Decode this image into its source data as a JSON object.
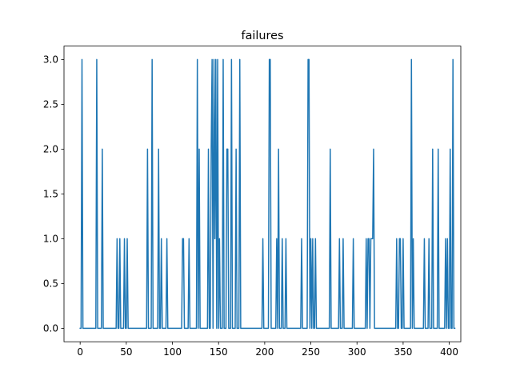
{
  "chart_data": {
    "type": "line",
    "title": "failures",
    "xlabel": "",
    "ylabel": "",
    "xlim": [
      -17.5,
      412.5
    ],
    "ylim": [
      -0.15,
      3.15
    ],
    "x_ticks": [
      0,
      50,
      100,
      150,
      200,
      250,
      300,
      350,
      400
    ],
    "x_tick_labels": [
      "0",
      "50",
      "100",
      "150",
      "200",
      "250",
      "300",
      "350",
      "400"
    ],
    "y_ticks": [
      0.0,
      0.5,
      1.0,
      1.5,
      2.0,
      2.5,
      3.0
    ],
    "y_tick_labels": [
      "0.0",
      "0.5",
      "1.0",
      "1.5",
      "2.0",
      "2.5",
      "3.0"
    ],
    "grid": false,
    "line_color": "#1f77b4",
    "series": [
      {
        "name": "failures",
        "x_start": 0,
        "values": [
          0,
          0,
          3,
          0,
          0,
          0,
          0,
          0,
          0,
          0,
          0,
          0,
          0,
          0,
          0,
          0,
          0,
          0,
          3,
          0,
          0,
          0,
          0,
          0,
          2,
          0,
          0,
          0,
          0,
          0,
          0,
          0,
          0,
          0,
          0,
          0,
          0,
          0,
          0,
          0,
          1,
          0,
          0,
          1,
          0,
          0,
          0,
          0,
          1,
          0,
          0,
          1,
          0,
          0,
          0,
          0,
          0,
          0,
          0,
          0,
          0,
          0,
          0,
          0,
          0,
          0,
          0,
          0,
          0,
          0,
          0,
          0,
          0,
          2,
          0,
          0,
          0,
          0,
          3,
          0,
          0,
          0,
          0,
          0,
          0,
          2,
          0,
          0,
          1,
          0,
          0,
          0,
          0,
          0,
          1,
          0,
          0,
          0,
          0,
          0,
          0,
          0,
          0,
          0,
          0,
          0,
          0,
          0,
          0,
          0,
          0,
          1,
          1,
          0,
          0,
          0,
          0,
          0,
          1,
          0,
          0,
          0,
          0,
          0,
          0,
          0,
          0,
          3,
          0,
          2,
          0,
          0,
          0,
          0,
          0,
          0,
          0,
          0,
          0,
          2,
          0,
          0,
          2,
          3,
          0,
          3,
          1,
          3,
          0,
          3,
          0,
          1,
          0,
          0,
          0,
          3,
          0,
          0,
          0,
          2,
          2,
          0,
          0,
          0,
          3,
          0,
          0,
          0,
          0,
          2,
          0,
          0,
          0,
          3,
          0,
          0,
          0,
          0,
          0,
          0,
          0,
          0,
          0,
          0,
          0,
          0,
          0,
          0,
          0,
          0,
          0,
          0,
          0,
          0,
          0,
          0,
          0,
          0,
          1,
          0,
          0,
          0,
          0,
          0,
          0,
          3,
          3,
          0,
          0,
          0,
          0,
          0,
          0,
          1,
          0,
          2,
          0,
          0,
          0,
          1,
          0,
          0,
          0,
          1,
          0,
          0,
          0,
          0,
          0,
          0,
          0,
          0,
          0,
          0,
          0,
          0,
          0,
          0,
          0,
          0,
          1,
          0,
          0,
          0,
          0,
          0,
          0,
          3,
          3,
          0,
          1,
          0,
          1,
          0,
          0,
          1,
          0,
          0,
          0,
          0,
          0,
          0,
          0,
          0,
          0,
          0,
          0,
          0,
          0,
          0,
          0,
          2,
          0,
          0,
          0,
          0,
          0,
          0,
          0,
          0,
          0,
          1,
          0,
          0,
          0,
          1,
          0,
          0,
          0,
          0,
          0,
          0,
          0,
          0,
          0,
          0,
          1,
          0,
          0,
          0,
          0,
          0,
          0,
          0,
          0,
          0,
          0,
          0,
          0,
          0,
          1,
          0,
          1,
          1,
          0,
          1,
          1,
          1,
          2,
          0,
          0,
          0,
          0,
          0,
          0,
          0,
          0,
          0,
          0,
          0,
          0,
          0,
          0,
          0,
          0,
          0,
          0,
          0,
          0,
          0,
          0,
          0,
          0,
          1,
          0,
          0,
          1,
          1,
          0,
          0,
          1,
          0,
          0,
          0,
          0,
          0,
          0,
          0,
          0,
          3,
          0,
          1,
          0,
          0,
          0,
          0,
          0,
          0,
          0,
          0,
          0,
          0,
          0,
          1,
          0,
          0,
          0,
          0,
          1,
          0,
          0,
          0,
          2,
          0,
          0,
          0,
          0,
          0,
          2,
          0,
          0,
          0,
          0,
          0,
          0,
          0,
          1,
          0,
          1,
          0,
          0,
          2,
          0,
          0,
          3,
          0,
          0
        ]
      }
    ]
  }
}
